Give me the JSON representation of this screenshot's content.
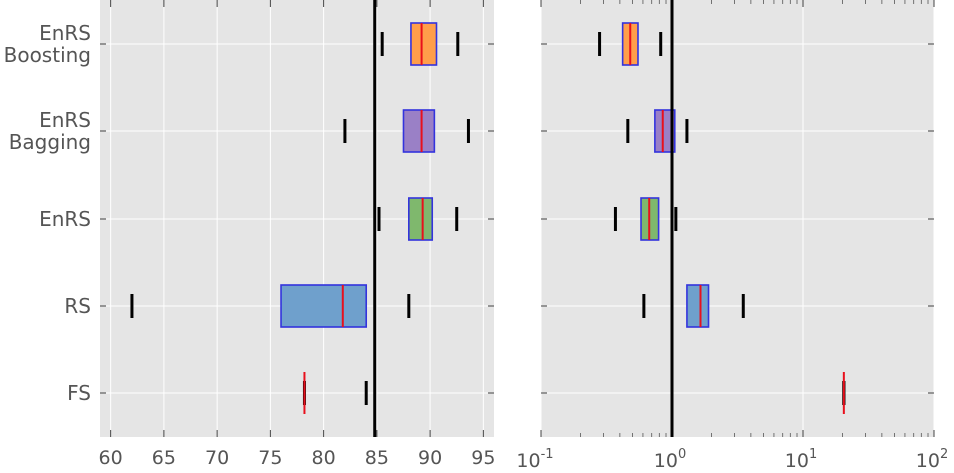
{
  "chart_data": [
    {
      "type": "box",
      "xscale": "linear",
      "xlim": [
        59,
        96
      ],
      "xticks": [
        60,
        65,
        70,
        75,
        80,
        85,
        90,
        95
      ],
      "reference_line": 84.8,
      "grid": true,
      "categories": [
        "EnRS\nBoosting",
        "EnRS\nBagging",
        "EnRS",
        "RS",
        "FS"
      ],
      "boxes": [
        {
          "whisker_low": 85.5,
          "q1": 88.2,
          "median": 89.2,
          "q3": 90.6,
          "whisker_high": 92.6,
          "color": "#ff9e4a"
        },
        {
          "whisker_low": 82.0,
          "q1": 87.5,
          "median": 89.2,
          "q3": 90.4,
          "whisker_high": 93.6,
          "color": "#9a80c6"
        },
        {
          "whisker_low": 85.2,
          "q1": 88.0,
          "median": 89.3,
          "q3": 90.2,
          "whisker_high": 92.5,
          "color": "#7fb86d"
        },
        {
          "whisker_low": 62.0,
          "q1": 76.0,
          "median": 81.8,
          "q3": 84.0,
          "whisker_high": 88.0,
          "color": "#6fa0cc"
        },
        {
          "whisker_low": 78.2,
          "q1": 78.2,
          "median": 78.2,
          "q3": 78.2,
          "whisker_high": 84.0,
          "color": "#6fa0cc"
        }
      ]
    },
    {
      "type": "box",
      "xscale": "log",
      "xlim": [
        0.1,
        100
      ],
      "xticks": [
        0.1,
        1,
        10,
        100
      ],
      "xtick_labels": [
        {
          "base": "10",
          "exp": "-1"
        },
        {
          "base": "10",
          "exp": "0"
        },
        {
          "base": "10",
          "exp": "1"
        },
        {
          "base": "10",
          "exp": "2"
        }
      ],
      "reference_line": 1.0,
      "grid": true,
      "categories": [
        "EnRS\nBoosting",
        "EnRS\nBagging",
        "EnRS",
        "RS",
        "FS"
      ],
      "boxes": [
        {
          "whisker_low": 0.28,
          "q1": 0.42,
          "median": 0.48,
          "q3": 0.55,
          "whisker_high": 0.82,
          "color": "#ff9e4a"
        },
        {
          "whisker_low": 0.46,
          "q1": 0.74,
          "median": 0.85,
          "q3": 1.05,
          "whisker_high": 1.3,
          "color": "#9a80c6"
        },
        {
          "whisker_low": 0.37,
          "q1": 0.58,
          "median": 0.67,
          "q3": 0.79,
          "whisker_high": 1.07,
          "color": "#7fb86d"
        },
        {
          "whisker_low": 0.61,
          "q1": 1.3,
          "median": 1.65,
          "q3": 1.9,
          "whisker_high": 3.5,
          "color": "#6fa0cc"
        },
        {
          "whisker_low": 20.5,
          "q1": 20.5,
          "median": 20.5,
          "q3": 20.5,
          "whisker_high": 20.5,
          "color": "#6fa0cc"
        }
      ]
    }
  ]
}
